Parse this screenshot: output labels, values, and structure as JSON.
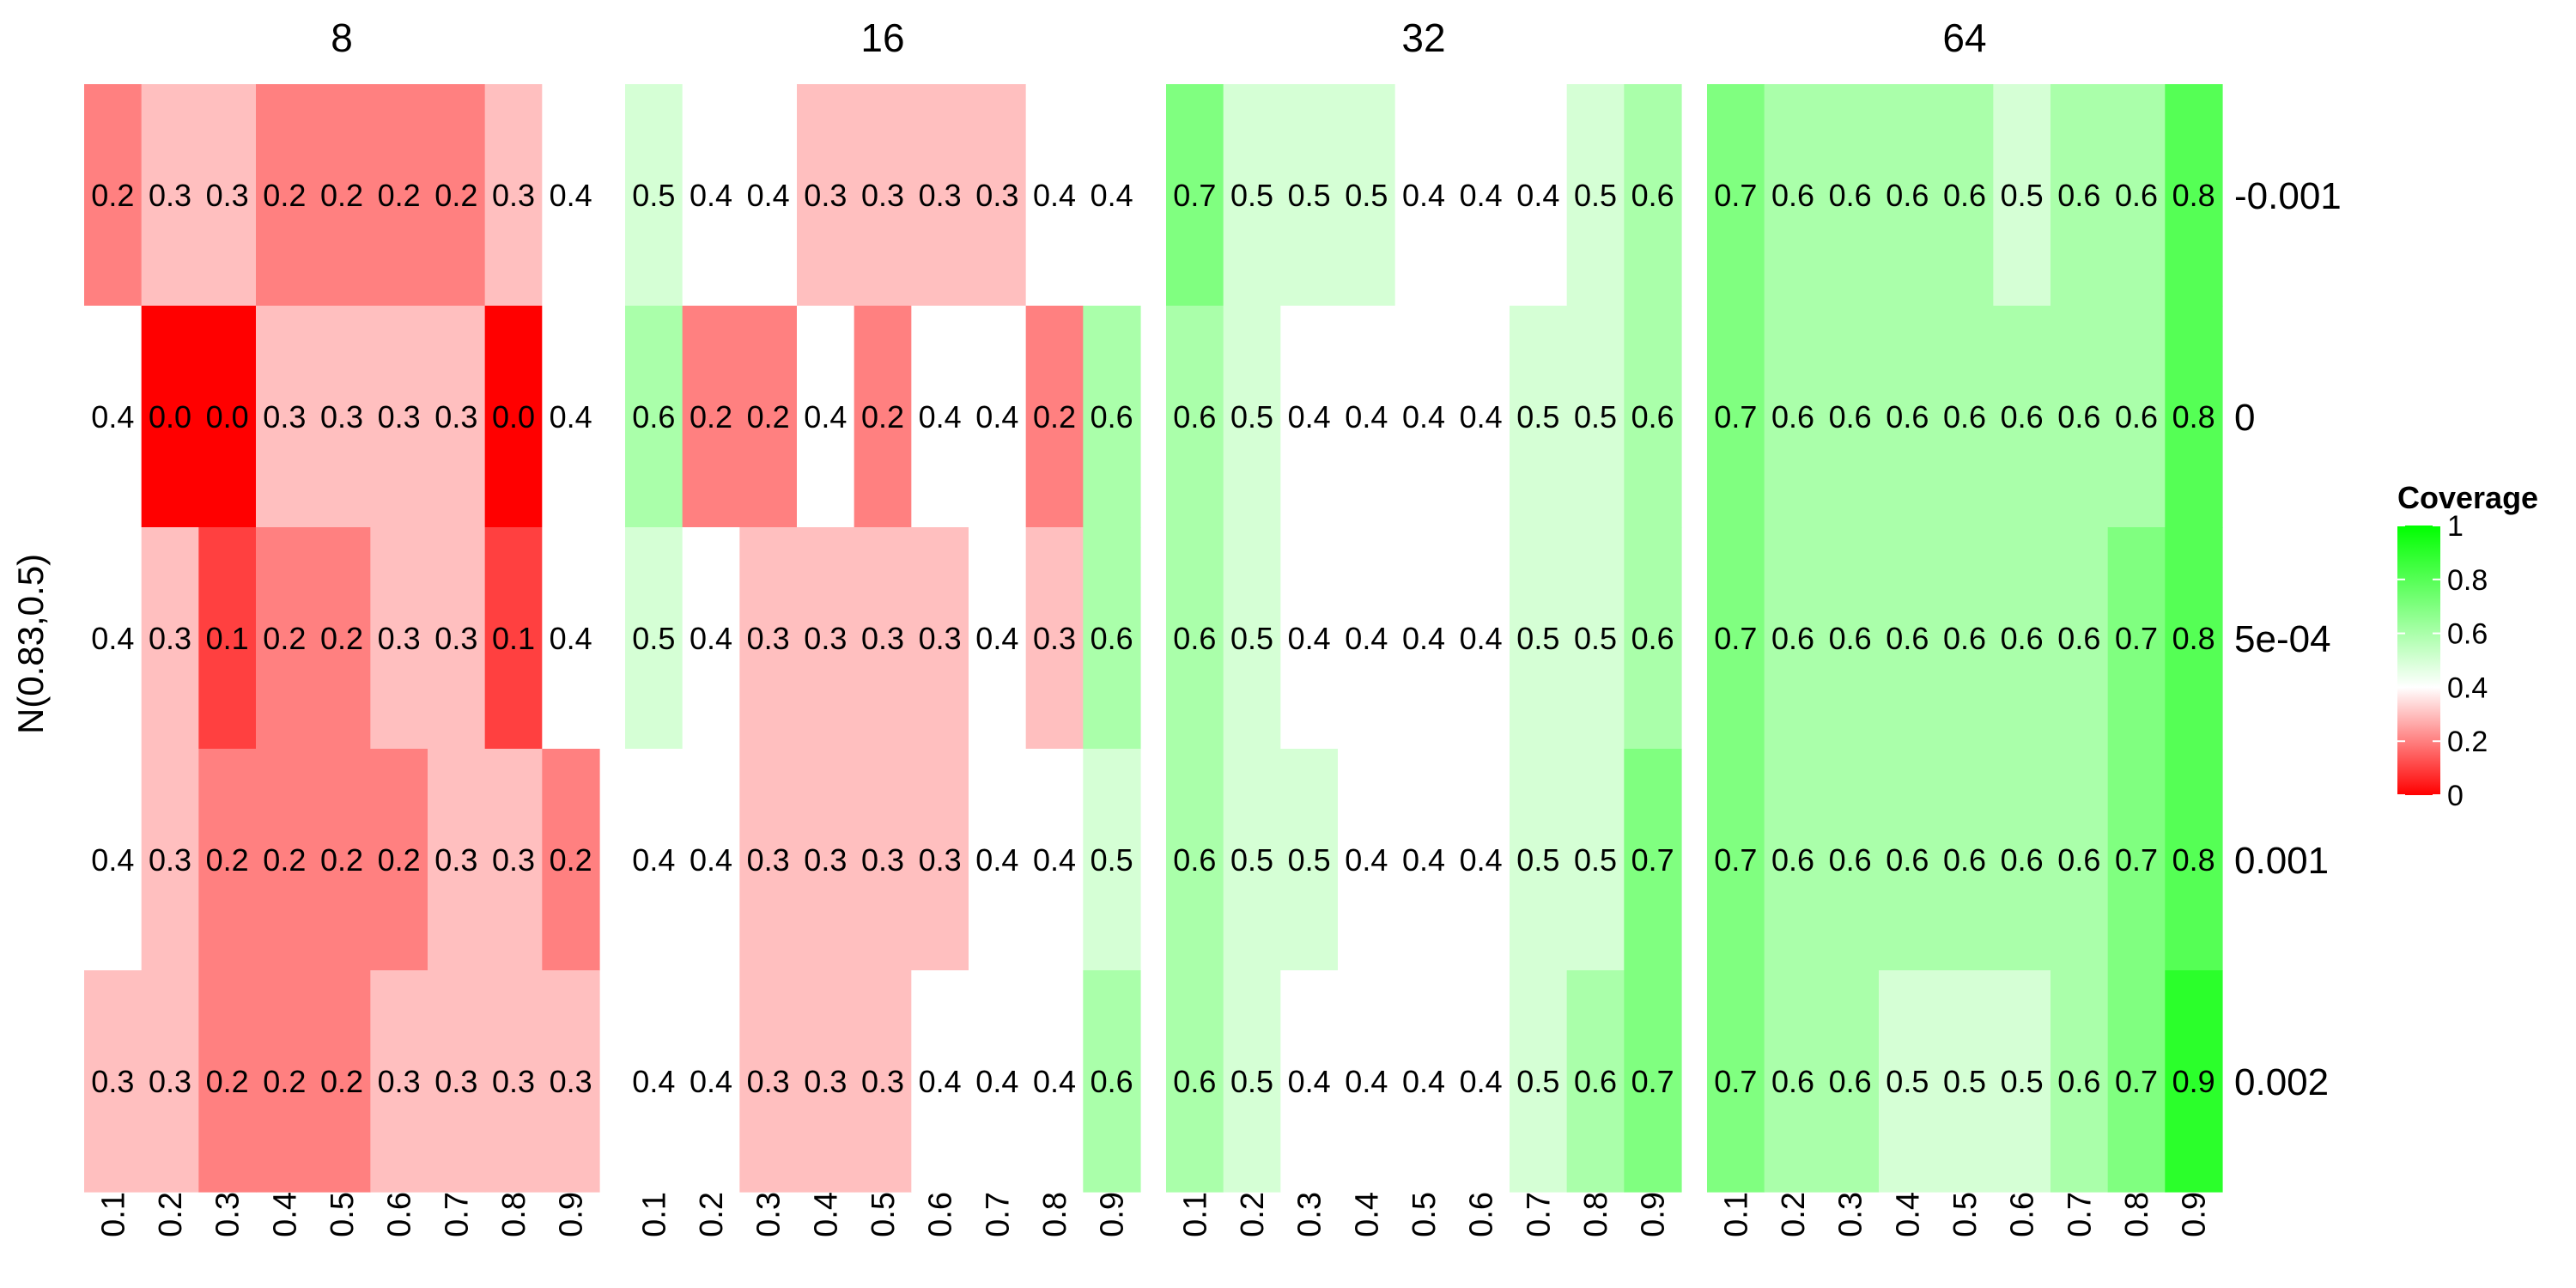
{
  "chart_data": {
    "type": "heatmap",
    "facets": [
      "8",
      "16",
      "32",
      "64"
    ],
    "x": [
      "0.1",
      "0.2",
      "0.3",
      "0.4",
      "0.5",
      "0.6",
      "0.7",
      "0.8",
      "0.9"
    ],
    "y": [
      "-0.001",
      "0",
      "5e-04",
      "0.001",
      "0.002"
    ],
    "ylabel": "N(0.83,0.5)",
    "values": {
      "8": [
        [
          0.2,
          0.3,
          0.3,
          0.2,
          0.2,
          0.2,
          0.2,
          0.3,
          0.4
        ],
        [
          0.4,
          0.0,
          0.0,
          0.3,
          0.3,
          0.3,
          0.3,
          0.0,
          0.4
        ],
        [
          0.4,
          0.3,
          0.1,
          0.2,
          0.2,
          0.3,
          0.3,
          0.1,
          0.4
        ],
        [
          0.4,
          0.3,
          0.2,
          0.2,
          0.2,
          0.2,
          0.3,
          0.3,
          0.2
        ],
        [
          0.3,
          0.3,
          0.2,
          0.2,
          0.2,
          0.3,
          0.3,
          0.3,
          0.3
        ]
      ],
      "16": [
        [
          0.5,
          0.4,
          0.4,
          0.3,
          0.3,
          0.3,
          0.3,
          0.4,
          0.4
        ],
        [
          0.6,
          0.2,
          0.2,
          0.4,
          0.2,
          0.4,
          0.4,
          0.2,
          0.6
        ],
        [
          0.5,
          0.4,
          0.3,
          0.3,
          0.3,
          0.3,
          0.4,
          0.3,
          0.6
        ],
        [
          0.4,
          0.4,
          0.3,
          0.3,
          0.3,
          0.3,
          0.4,
          0.4,
          0.5
        ],
        [
          0.4,
          0.4,
          0.3,
          0.3,
          0.3,
          0.4,
          0.4,
          0.4,
          0.6
        ]
      ],
      "32": [
        [
          0.7,
          0.5,
          0.5,
          0.5,
          0.4,
          0.4,
          0.4,
          0.5,
          0.6
        ],
        [
          0.6,
          0.5,
          0.4,
          0.4,
          0.4,
          0.4,
          0.5,
          0.5,
          0.6
        ],
        [
          0.6,
          0.5,
          0.4,
          0.4,
          0.4,
          0.4,
          0.5,
          0.5,
          0.6
        ],
        [
          0.6,
          0.5,
          0.5,
          0.4,
          0.4,
          0.4,
          0.5,
          0.5,
          0.7
        ],
        [
          0.6,
          0.5,
          0.4,
          0.4,
          0.4,
          0.4,
          0.5,
          0.6,
          0.7
        ]
      ],
      "64": [
        [
          0.7,
          0.6,
          0.6,
          0.6,
          0.6,
          0.5,
          0.6,
          0.6,
          0.8
        ],
        [
          0.7,
          0.6,
          0.6,
          0.6,
          0.6,
          0.6,
          0.6,
          0.6,
          0.8
        ],
        [
          0.7,
          0.6,
          0.6,
          0.6,
          0.6,
          0.6,
          0.6,
          0.7,
          0.8
        ],
        [
          0.7,
          0.6,
          0.6,
          0.6,
          0.6,
          0.6,
          0.6,
          0.7,
          0.8
        ],
        [
          0.7,
          0.6,
          0.6,
          0.5,
          0.5,
          0.5,
          0.6,
          0.7,
          0.9
        ]
      ]
    },
    "legend": {
      "title": "Coverage",
      "ticks": [
        "0",
        "0.2",
        "0.4",
        "0.6",
        "0.8",
        "1"
      ],
      "range": [
        0,
        1
      ],
      "midpoint": 0.4,
      "placement": "right"
    },
    "colors": {
      "low": "#ff0000",
      "mid": "#ffffff",
      "high": "#00ff00"
    },
    "grid": false
  }
}
